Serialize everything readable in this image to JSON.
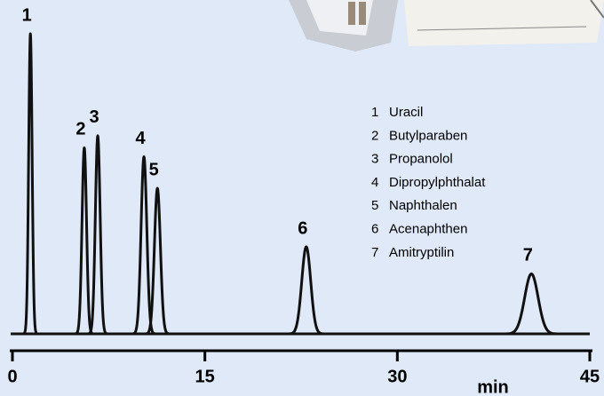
{
  "chart_data": {
    "type": "chromatogram",
    "categories": [
      "1",
      "2",
      "3",
      "4",
      "5",
      "6",
      "7"
    ],
    "x": [
      1.4,
      5.6,
      6.65,
      10.25,
      11.3,
      22.9,
      40.45
    ],
    "values": [
      100,
      62,
      66,
      59,
      48.5,
      29,
      20
    ],
    "names": [
      "Uracil",
      "Butylparaben",
      "Propanolol",
      "Dipropylphthalat",
      "Naphthalen",
      "Acenaphthen",
      "Amitryptilin"
    ],
    "color": "#111111",
    "xlabel": "min",
    "xlim": [
      0,
      45
    ],
    "xticks": [
      0,
      15,
      30,
      45
    ],
    "ylim": [
      0,
      100
    ]
  }
}
